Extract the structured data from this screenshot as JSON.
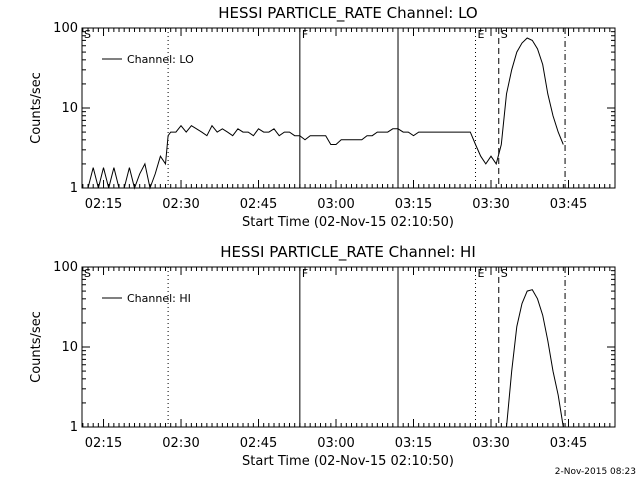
{
  "footer_date": "2-Nov-2015 08:23",
  "chart_data": [
    {
      "type": "line",
      "title": "HESSI PARTICLE_RATE Channel: LO",
      "xlabel": "Start Time (02-Nov-15 02:10:50)",
      "ylabel": "Counts/sec",
      "yscale": "log",
      "ylim": [
        1,
        100
      ],
      "xlim": [
        "02:10:50",
        "03:54:00"
      ],
      "xticks": [
        "02:15",
        "02:30",
        "02:45",
        "03:00",
        "03:15",
        "03:30",
        "03:45"
      ],
      "yticks": [
        "1",
        "10",
        "100"
      ],
      "grid": false,
      "legend": {
        "position": "top-left",
        "entries": [
          "Channel: LO"
        ]
      },
      "markers": [
        {
          "label": "S",
          "time": "02:10:50",
          "style": "dotted"
        },
        {
          "time": "02:27:30",
          "style": "dotted"
        },
        {
          "label": "F",
          "time": "02:53:00",
          "style": "solid"
        },
        {
          "time": "03:12:00",
          "style": "solid"
        },
        {
          "label": "E",
          "time": "03:27:00",
          "style": "dotted"
        },
        {
          "label": "S",
          "time": "03:31:30",
          "style": "dashed"
        },
        {
          "time": "03:44:20",
          "style": "dashdot"
        }
      ],
      "series": [
        {
          "name": "Channel: LO",
          "x": [
            "02:12:00",
            "02:13:00",
            "02:14:00",
            "02:15:00",
            "02:16:00",
            "02:17:00",
            "02:18:00",
            "02:19:00",
            "02:20:00",
            "02:21:00",
            "02:22:00",
            "02:23:00",
            "02:24:00",
            "02:25:00",
            "02:26:00",
            "02:27:00",
            "02:27:30",
            "02:28:00",
            "02:29:00",
            "02:30:00",
            "02:31:00",
            "02:32:00",
            "02:33:00",
            "02:34:00",
            "02:35:00",
            "02:36:00",
            "02:37:00",
            "02:38:00",
            "02:39:00",
            "02:40:00",
            "02:41:00",
            "02:42:00",
            "02:43:00",
            "02:44:00",
            "02:45:00",
            "02:46:00",
            "02:47:00",
            "02:48:00",
            "02:49:00",
            "02:50:00",
            "02:51:00",
            "02:52:00",
            "02:53:00",
            "02:54:00",
            "02:55:00",
            "02:56:00",
            "02:57:00",
            "02:58:00",
            "02:59:00",
            "03:00:00",
            "03:01:00",
            "03:02:00",
            "03:03:00",
            "03:04:00",
            "03:05:00",
            "03:06:00",
            "03:07:00",
            "03:08:00",
            "03:09:00",
            "03:10:00",
            "03:11:00",
            "03:12:00",
            "03:13:00",
            "03:14:00",
            "03:15:00",
            "03:16:00",
            "03:17:00",
            "03:18:00",
            "03:19:00",
            "03:20:00",
            "03:21:00",
            "03:22:00",
            "03:23:00",
            "03:24:00",
            "03:25:00",
            "03:26:00",
            "03:27:00",
            "03:28:00",
            "03:29:00",
            "03:30:00",
            "03:31:00",
            "03:32:00",
            "03:33:00",
            "03:34:00",
            "03:35:00",
            "03:36:00",
            "03:37:00",
            "03:38:00",
            "03:39:00",
            "03:40:00",
            "03:41:00",
            "03:42:00",
            "03:43:00",
            "03:44:00"
          ],
          "y": [
            1,
            1.8,
            1,
            1.8,
            1,
            1.8,
            1,
            1,
            1.8,
            1,
            1.5,
            2,
            1,
            1.5,
            2.5,
            2,
            4.5,
            5,
            5,
            6,
            5,
            6,
            5.5,
            5,
            4.5,
            6,
            5,
            5.5,
            5,
            4.5,
            5.5,
            5,
            5,
            4.5,
            5.5,
            5,
            5,
            5.5,
            4.5,
            5,
            5,
            4.5,
            4.5,
            4,
            4.5,
            4.5,
            4.5,
            4.5,
            3.5,
            3.5,
            4,
            4,
            4,
            4,
            4,
            4.5,
            4.5,
            5,
            5,
            5,
            5.5,
            5.5,
            5,
            5,
            4.5,
            5,
            5,
            5,
            5,
            5,
            5,
            5,
            5,
            5,
            5,
            5,
            3.5,
            2.5,
            2,
            2.5,
            2,
            3.5,
            15,
            30,
            50,
            65,
            75,
            70,
            55,
            35,
            15,
            8,
            5,
            3.5
          ]
        }
      ]
    },
    {
      "type": "line",
      "title": "HESSI PARTICLE_RATE Channel: HI",
      "xlabel": "Start Time (02-Nov-15 02:10:50)",
      "ylabel": "Counts/sec",
      "yscale": "log",
      "ylim": [
        1,
        100
      ],
      "xlim": [
        "02:10:50",
        "03:54:00"
      ],
      "xticks": [
        "02:15",
        "02:30",
        "02:45",
        "03:00",
        "03:15",
        "03:30",
        "03:45"
      ],
      "yticks": [
        "1",
        "10",
        "100"
      ],
      "grid": false,
      "legend": {
        "position": "top-left",
        "entries": [
          "Channel: HI"
        ]
      },
      "markers": [
        {
          "label": "S",
          "time": "02:10:50",
          "style": "dotted"
        },
        {
          "time": "02:27:30",
          "style": "dotted"
        },
        {
          "label": "F",
          "time": "02:53:00",
          "style": "solid"
        },
        {
          "time": "03:12:00",
          "style": "solid"
        },
        {
          "label": "E",
          "time": "03:27:00",
          "style": "dotted"
        },
        {
          "label": "S",
          "time": "03:31:30",
          "style": "dashed"
        },
        {
          "time": "03:44:20",
          "style": "dashdot"
        }
      ],
      "series": [
        {
          "name": "Channel: HI",
          "x": [
            "03:33:00",
            "03:34:00",
            "03:35:00",
            "03:36:00",
            "03:37:00",
            "03:38:00",
            "03:39:00",
            "03:40:00",
            "03:41:00",
            "03:42:00",
            "03:43:00",
            "03:44:00"
          ],
          "y": [
            1,
            5,
            18,
            35,
            50,
            52,
            40,
            25,
            12,
            5,
            2.5,
            1
          ]
        }
      ]
    }
  ]
}
